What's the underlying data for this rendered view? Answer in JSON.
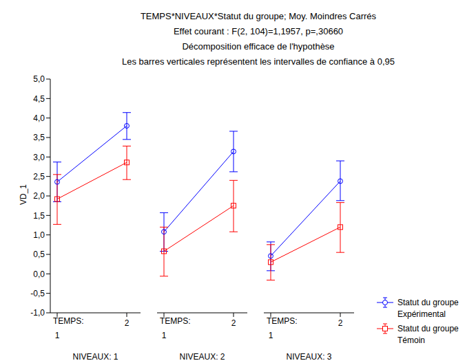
{
  "chart_data": {
    "type": "line",
    "title": "TEMPS*NIVEAUX*Statut du groupe; Moy. Moindres Carrés",
    "subtitle": [
      "Effet courant : F(2, 104)=1,1957, p=,30660",
      "Décomposition efficace de l'hypothèse",
      "Les barres verticales représentent les intervalles de confiance à 0,95"
    ],
    "y_label": "VD_1",
    "x_label": "TEMPS:",
    "categories": [
      "1",
      "2"
    ],
    "ylim": [
      -1,
      5
    ],
    "yticks": [
      {
        "value": -1,
        "label": "-1,0"
      },
      {
        "value": -0.5,
        "label": "-0,5"
      },
      {
        "value": 0,
        "label": "0,0"
      },
      {
        "value": 0.5,
        "label": "0,5"
      },
      {
        "value": 1,
        "label": "1,0"
      },
      {
        "value": 1.5,
        "label": "1,5"
      },
      {
        "value": 2,
        "label": "2,0"
      },
      {
        "value": 2.5,
        "label": "2,5"
      },
      {
        "value": 3,
        "label": "3,0"
      },
      {
        "value": 3.5,
        "label": "3,5"
      },
      {
        "value": 4,
        "label": "4,0"
      },
      {
        "value": 4.5,
        "label": "4,5"
      },
      {
        "value": 5,
        "label": "5,0"
      }
    ],
    "grid": false,
    "panels": [
      {
        "title": "NIVEAUX: 1",
        "series": [
          {
            "name": "Statut du groupe Expérimental",
            "color": "#0000ff",
            "marker": "circle",
            "values": [
              2.36,
              3.8
            ],
            "ci_low": [
              1.85,
              3.45
            ],
            "ci_high": [
              2.87,
              4.14
            ]
          },
          {
            "name": "Statut du groupe Témoin",
            "color": "#ff0000",
            "marker": "square",
            "values": [
              1.92,
              2.86
            ],
            "ci_low": [
              1.27,
              2.42
            ],
            "ci_high": [
              2.55,
              3.28
            ]
          }
        ]
      },
      {
        "title": "NIVEAUX: 2",
        "series": [
          {
            "name": "Statut du groupe Expérimental",
            "color": "#0000ff",
            "marker": "circle",
            "values": [
              1.08,
              3.14
            ],
            "ci_low": [
              0.58,
              2.62
            ],
            "ci_high": [
              1.57,
              3.66
            ]
          },
          {
            "name": "Statut du groupe Témoin",
            "color": "#ff0000",
            "marker": "square",
            "values": [
              0.58,
              1.75
            ],
            "ci_low": [
              -0.06,
              1.08
            ],
            "ci_high": [
              1.2,
              2.4
            ]
          }
        ]
      },
      {
        "title": "NIVEAUX: 3",
        "series": [
          {
            "name": "Statut du groupe Expérimental",
            "color": "#0000ff",
            "marker": "circle",
            "values": [
              0.46,
              2.38
            ],
            "ci_low": [
              0.08,
              1.88
            ],
            "ci_high": [
              0.82,
              2.9
            ]
          },
          {
            "name": "Statut du groupe Témoin",
            "color": "#ff0000",
            "marker": "square",
            "values": [
              0.3,
              1.2
            ],
            "ci_low": [
              -0.16,
              0.55
            ],
            "ci_high": [
              0.75,
              1.83
            ]
          }
        ]
      }
    ]
  }
}
